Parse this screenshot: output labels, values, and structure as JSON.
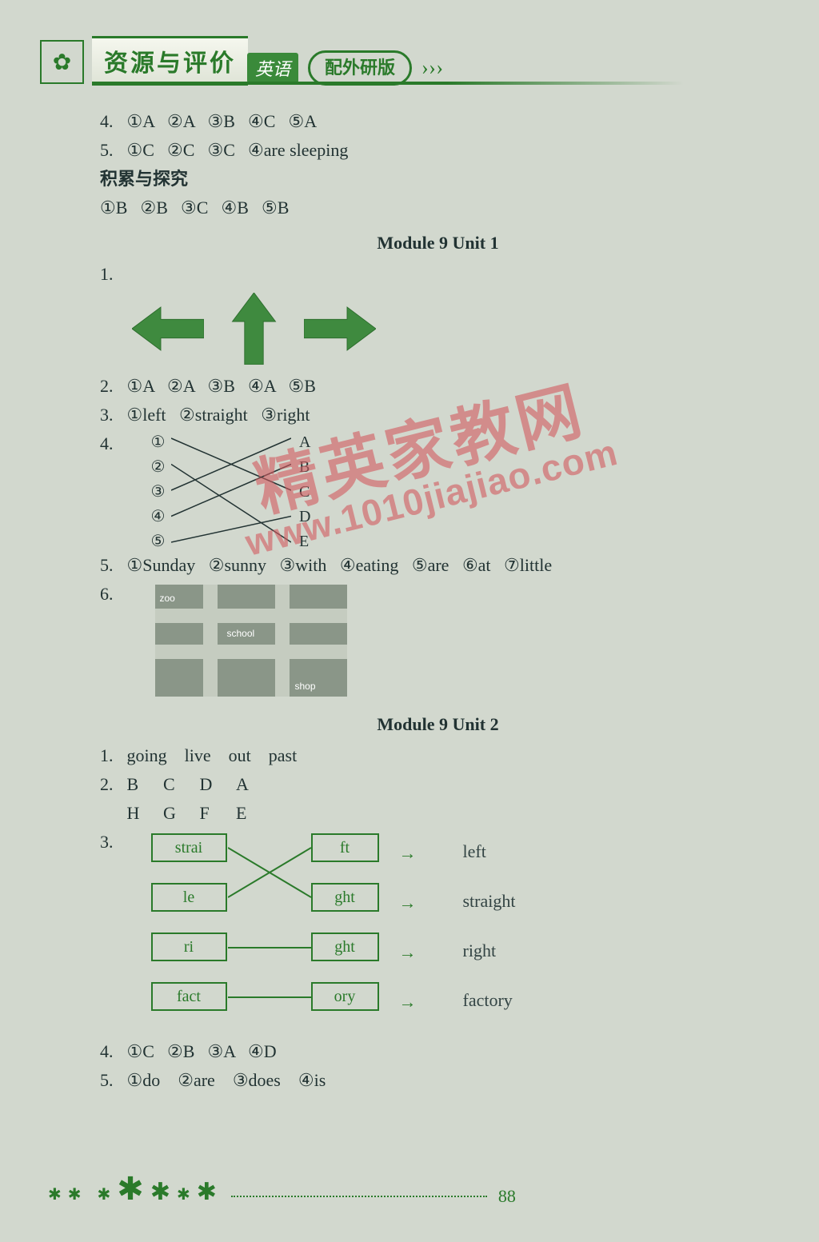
{
  "banner": {
    "logo_glyph": "✿",
    "title_main": "资源与评价",
    "title_sub": "英语",
    "title_badge": "配外研版",
    "chevrons": "› › ›"
  },
  "colors": {
    "page_bg": "#d2d8ce",
    "brand_green": "#2a7a2a",
    "arrow_fill": "#3f8a3f",
    "text": "#233",
    "watermark": "rgba(210,90,95,0.6)"
  },
  "top_block": {
    "q4": {
      "num": "4.",
      "items": [
        "①A",
        "②A",
        "③B",
        "④C",
        "⑤A"
      ]
    },
    "q5": {
      "num": "5.",
      "items": [
        "①C",
        "②C",
        "③C",
        "④are sleeping"
      ]
    },
    "accum_label": "积累与探究",
    "accum_items": [
      "①B",
      "②B",
      "③C",
      "④B",
      "⑤B"
    ]
  },
  "m9u1": {
    "heading": "Module 9   Unit 1",
    "q1_num": "1.",
    "arrows": {
      "left": {
        "dir": "left",
        "fill": "#3f8a3f"
      },
      "up": {
        "dir": "up",
        "fill": "#3f8a3f"
      },
      "right": {
        "dir": "right",
        "fill": "#3f8a3f"
      }
    },
    "q2": {
      "num": "2.",
      "items": [
        "①A",
        "②A",
        "③B",
        "④A",
        "⑤B"
      ]
    },
    "q3": {
      "num": "3.",
      "items": [
        "①left",
        "②straight",
        "③right"
      ]
    },
    "q4": {
      "num": "4.",
      "left": [
        "①",
        "②",
        "③",
        "④",
        "⑤"
      ],
      "right": [
        "A",
        "B",
        "C",
        "D",
        "E"
      ],
      "edges": [
        [
          0,
          2
        ],
        [
          1,
          4
        ],
        [
          2,
          0
        ],
        [
          3,
          1
        ],
        [
          4,
          3
        ]
      ]
    },
    "q5": {
      "num": "5.",
      "items": [
        "①Sunday",
        "②sunny",
        "③with",
        "④eating",
        "⑤are",
        "⑥at",
        "⑦little"
      ]
    },
    "q6": {
      "num": "6.",
      "labels": {
        "zoo": "zoo",
        "school": "school",
        "shop": "shop"
      }
    }
  },
  "m9u2": {
    "heading": "Module 9   Unit 2",
    "q1": {
      "num": "1.",
      "items": [
        "going",
        "live",
        "out",
        "past"
      ]
    },
    "q2": {
      "num": "2.",
      "row1": [
        "B",
        "C",
        "D",
        "A"
      ],
      "row2": [
        "H",
        "G",
        "F",
        "E"
      ]
    },
    "q3": {
      "num": "3.",
      "pairs": [
        {
          "left": "strai",
          "right": "ft",
          "result": "left",
          "cross": true
        },
        {
          "left": "le",
          "right": "ght",
          "result": "straight",
          "cross": true
        },
        {
          "left": "ri",
          "right": "ght",
          "result": "right",
          "cross": false
        },
        {
          "left": "fact",
          "right": "ory",
          "result": "factory",
          "cross": false
        }
      ]
    },
    "q4": {
      "num": "4.",
      "items": [
        "①C",
        "②B",
        "③A",
        "④D"
      ]
    },
    "q5": {
      "num": "5.",
      "items": [
        "①do",
        "②are",
        "③does",
        "④is"
      ]
    }
  },
  "watermark": {
    "line1": "精英家教网",
    "line2": "www.1010jiajiao.com"
  },
  "footer": {
    "page_number": "88"
  }
}
